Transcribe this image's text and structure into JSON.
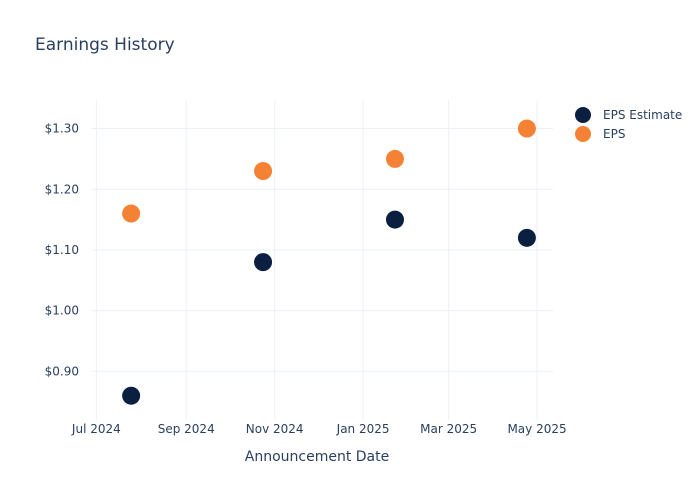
{
  "chart_data": {
    "type": "scatter",
    "title": "Earnings History",
    "xlabel": "Announcement Date",
    "ylabel": "",
    "x_ticks": [
      {
        "date": "2024-07-01",
        "label": "Jul 2024"
      },
      {
        "date": "2024-09-01",
        "label": "Sep 2024"
      },
      {
        "date": "2024-11-01",
        "label": "Nov 2024"
      },
      {
        "date": "2025-01-01",
        "label": "Jan 2025"
      },
      {
        "date": "2025-03-01",
        "label": "Mar 2025"
      },
      {
        "date": "2025-05-01",
        "label": "May 2025"
      }
    ],
    "y_ticks": [
      {
        "value": 0.9,
        "label": "$0.90"
      },
      {
        "value": 1.0,
        "label": "$1.00"
      },
      {
        "value": 1.1,
        "label": "$1.10"
      },
      {
        "value": 1.2,
        "label": "$1.20"
      },
      {
        "value": 1.3,
        "label": "$1.30"
      }
    ],
    "xlim": [
      "2024-06-28",
      "2025-05-12"
    ],
    "ylim": [
      0.82,
      1.347
    ],
    "grid": true,
    "legend_position": "top-right",
    "series": [
      {
        "name": "EPS Estimate",
        "color": "#0b1f40",
        "points": [
          {
            "x": "2024-07-25",
            "y": 0.86
          },
          {
            "x": "2024-10-24",
            "y": 1.08
          },
          {
            "x": "2025-01-23",
            "y": 1.15
          },
          {
            "x": "2025-04-24",
            "y": 1.12
          }
        ]
      },
      {
        "name": "EPS",
        "color": "#f58134",
        "points": [
          {
            "x": "2024-07-25",
            "y": 1.16
          },
          {
            "x": "2024-10-24",
            "y": 1.23
          },
          {
            "x": "2025-01-23",
            "y": 1.25
          },
          {
            "x": "2025-04-24",
            "y": 1.3
          }
        ]
      }
    ]
  }
}
